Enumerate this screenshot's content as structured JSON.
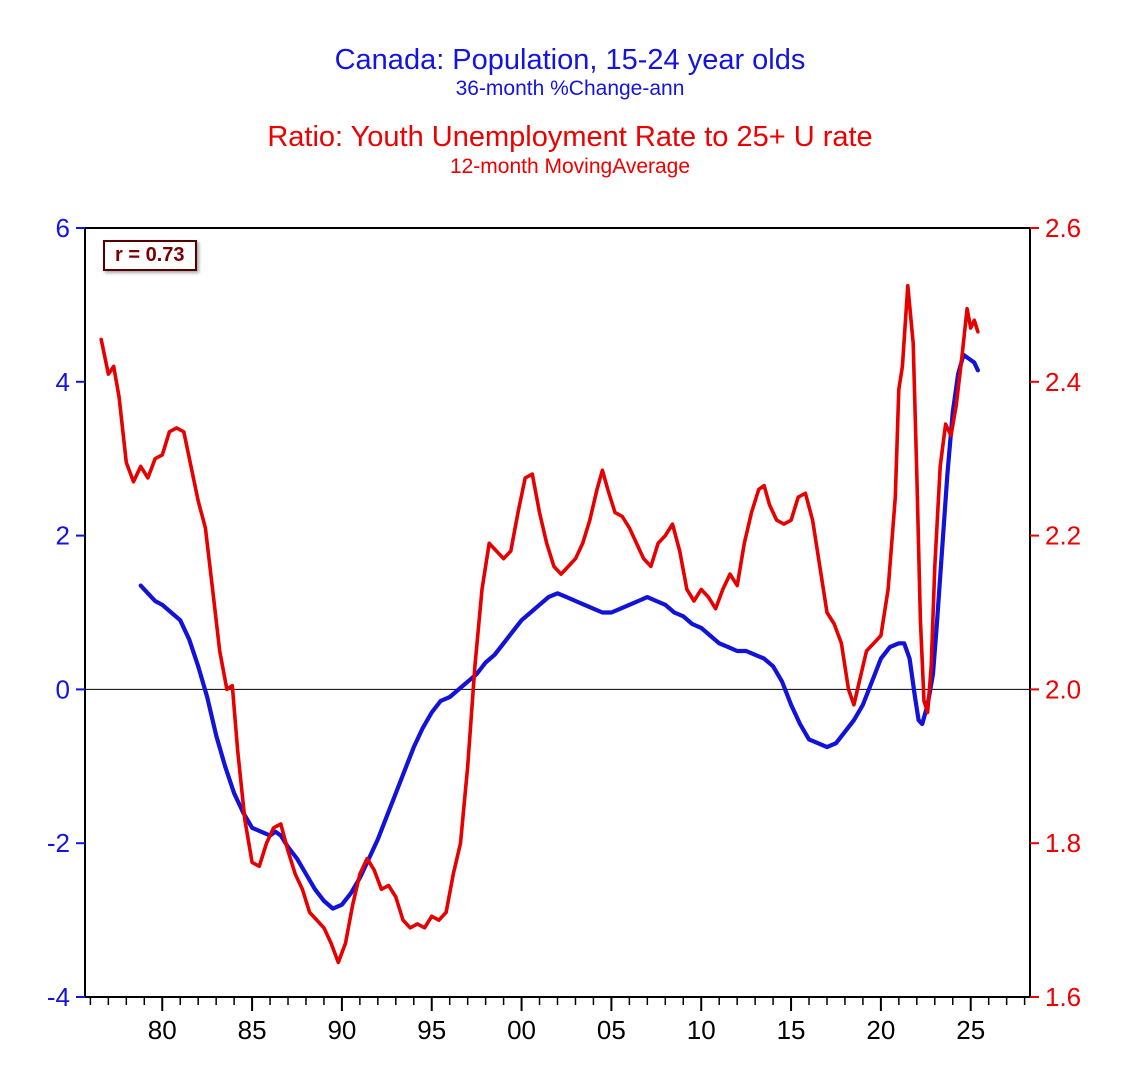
{
  "titles": {
    "line1": "Canada: Population, 15-24 year olds",
    "line2": "36-month %Change-ann",
    "line3": "Ratio: Youth Unemployment Rate to 25+ U rate",
    "line4": "12-month MovingAverage",
    "blue": "#1414E0",
    "red": "#EE0000"
  },
  "annotation": {
    "text": "r = 0.73",
    "color": "#7A0000"
  },
  "chart_data": {
    "type": "line",
    "title": "Canada: Population, 15-24 year olds",
    "subtitle": "36-month %Change-ann",
    "title2": "Ratio: Youth Unemployment Rate to 25+ U rate",
    "subtitle2": "12-month MovingAverage",
    "annotation": "r = 0.73",
    "legend_position": "none",
    "grid": false,
    "zero_line_left_value": 0,
    "x_axis": {
      "min": 1975.7,
      "max": 2028.3,
      "tick_years": [
        1980,
        1985,
        1990,
        1995,
        2000,
        2005,
        2010,
        2015,
        2020,
        2025
      ],
      "tick_labels": [
        "80",
        "85",
        "90",
        "95",
        "00",
        "05",
        "10",
        "15",
        "20",
        "25"
      ],
      "minor_tick_every_years": 1,
      "color": "#000000"
    },
    "left_axis": {
      "min": -4,
      "max": 6,
      "ticks": [
        -4,
        -2,
        0,
        2,
        4,
        6
      ],
      "color": "#1414E0",
      "label": "36-month %Change-ann"
    },
    "right_axis": {
      "min": 1.6,
      "max": 2.6,
      "ticks": [
        1.6,
        1.8,
        2.0,
        2.2,
        2.4,
        2.6
      ],
      "color": "#EE0000",
      "label": "Ratio: Youth U rate to 25+ U rate, 12-month MA"
    },
    "series": [
      {
        "name": "population-15-24-pct-change",
        "axis": "left",
        "color": "#1212D8",
        "width": 4.2,
        "points": [
          [
            1978.8,
            1.35
          ],
          [
            1979.2,
            1.25
          ],
          [
            1979.6,
            1.15
          ],
          [
            1980,
            1.1
          ],
          [
            1980.5,
            1.0
          ],
          [
            1981,
            0.9
          ],
          [
            1981.5,
            0.65
          ],
          [
            1982,
            0.3
          ],
          [
            1982.5,
            -0.1
          ],
          [
            1983,
            -0.6
          ],
          [
            1983.5,
            -1.0
          ],
          [
            1984,
            -1.35
          ],
          [
            1984.5,
            -1.6
          ],
          [
            1985,
            -1.8
          ],
          [
            1985.5,
            -1.85
          ],
          [
            1986,
            -1.9
          ],
          [
            1986.3,
            -1.85
          ],
          [
            1986.6,
            -1.9
          ],
          [
            1987,
            -2.05
          ],
          [
            1987.5,
            -2.2
          ],
          [
            1988,
            -2.4
          ],
          [
            1988.5,
            -2.6
          ],
          [
            1989,
            -2.75
          ],
          [
            1989.5,
            -2.85
          ],
          [
            1990,
            -2.8
          ],
          [
            1990.5,
            -2.65
          ],
          [
            1991,
            -2.45
          ],
          [
            1991.5,
            -2.2
          ],
          [
            1992,
            -1.95
          ],
          [
            1992.5,
            -1.65
          ],
          [
            1993,
            -1.35
          ],
          [
            1993.5,
            -1.05
          ],
          [
            1994,
            -0.75
          ],
          [
            1994.5,
            -0.5
          ],
          [
            1995,
            -0.3
          ],
          [
            1995.5,
            -0.15
          ],
          [
            1996,
            -0.1
          ],
          [
            1996.5,
            0.0
          ],
          [
            1997,
            0.1
          ],
          [
            1997.5,
            0.2
          ],
          [
            1998,
            0.35
          ],
          [
            1998.5,
            0.45
          ],
          [
            1999,
            0.6
          ],
          [
            1999.5,
            0.75
          ],
          [
            2000,
            0.9
          ],
          [
            2000.5,
            1.0
          ],
          [
            2001,
            1.1
          ],
          [
            2001.5,
            1.2
          ],
          [
            2002,
            1.25
          ],
          [
            2002.5,
            1.2
          ],
          [
            2003,
            1.15
          ],
          [
            2003.5,
            1.1
          ],
          [
            2004,
            1.05
          ],
          [
            2004.5,
            1.0
          ],
          [
            2005,
            1.0
          ],
          [
            2005.5,
            1.05
          ],
          [
            2006,
            1.1
          ],
          [
            2006.5,
            1.15
          ],
          [
            2007,
            1.2
          ],
          [
            2007.5,
            1.15
          ],
          [
            2008,
            1.1
          ],
          [
            2008.5,
            1.0
          ],
          [
            2009,
            0.95
          ],
          [
            2009.5,
            0.85
          ],
          [
            2010,
            0.8
          ],
          [
            2010.5,
            0.7
          ],
          [
            2011,
            0.6
          ],
          [
            2011.5,
            0.55
          ],
          [
            2012,
            0.5
          ],
          [
            2012.5,
            0.5
          ],
          [
            2013,
            0.45
          ],
          [
            2013.5,
            0.4
          ],
          [
            2014,
            0.3
          ],
          [
            2014.5,
            0.1
          ],
          [
            2015,
            -0.2
          ],
          [
            2015.5,
            -0.45
          ],
          [
            2016,
            -0.65
          ],
          [
            2016.5,
            -0.7
          ],
          [
            2017,
            -0.75
          ],
          [
            2017.5,
            -0.7
          ],
          [
            2018,
            -0.55
          ],
          [
            2018.5,
            -0.4
          ],
          [
            2019,
            -0.2
          ],
          [
            2019.5,
            0.1
          ],
          [
            2020,
            0.4
          ],
          [
            2020.5,
            0.55
          ],
          [
            2021,
            0.6
          ],
          [
            2021.3,
            0.6
          ],
          [
            2021.6,
            0.4
          ],
          [
            2021.9,
            -0.1
          ],
          [
            2022.1,
            -0.4
          ],
          [
            2022.3,
            -0.45
          ],
          [
            2022.6,
            -0.2
          ],
          [
            2022.9,
            0.2
          ],
          [
            2023.1,
            0.8
          ],
          [
            2023.4,
            1.8
          ],
          [
            2023.7,
            2.8
          ],
          [
            2024,
            3.6
          ],
          [
            2024.3,
            4.1
          ],
          [
            2024.6,
            4.35
          ],
          [
            2024.9,
            4.3
          ],
          [
            2025.2,
            4.25
          ],
          [
            2025.4,
            4.15
          ]
        ]
      },
      {
        "name": "youth-unemployment-ratio",
        "axis": "right",
        "color": "#E60000",
        "width": 3.6,
        "points": [
          [
            1976.6,
            2.455
          ],
          [
            1977,
            2.41
          ],
          [
            1977.3,
            2.42
          ],
          [
            1977.6,
            2.38
          ],
          [
            1978,
            2.295
          ],
          [
            1978.4,
            2.27
          ],
          [
            1978.8,
            2.29
          ],
          [
            1979.2,
            2.275
          ],
          [
            1979.6,
            2.3
          ],
          [
            1980,
            2.305
          ],
          [
            1980.4,
            2.335
          ],
          [
            1980.8,
            2.34
          ],
          [
            1981.2,
            2.335
          ],
          [
            1981.6,
            2.29
          ],
          [
            1982,
            2.245
          ],
          [
            1982.4,
            2.21
          ],
          [
            1982.8,
            2.13
          ],
          [
            1983.2,
            2.05
          ],
          [
            1983.6,
            2.0
          ],
          [
            1983.9,
            2.005
          ],
          [
            1984.2,
            1.92
          ],
          [
            1984.6,
            1.83
          ],
          [
            1985,
            1.775
          ],
          [
            1985.4,
            1.77
          ],
          [
            1985.8,
            1.8
          ],
          [
            1986.2,
            1.82
          ],
          [
            1986.6,
            1.825
          ],
          [
            1987,
            1.79
          ],
          [
            1987.4,
            1.76
          ],
          [
            1987.8,
            1.74
          ],
          [
            1988.2,
            1.71
          ],
          [
            1988.6,
            1.7
          ],
          [
            1989,
            1.69
          ],
          [
            1989.4,
            1.67
          ],
          [
            1989.8,
            1.645
          ],
          [
            1990.2,
            1.67
          ],
          [
            1990.6,
            1.72
          ],
          [
            1991,
            1.76
          ],
          [
            1991.4,
            1.78
          ],
          [
            1991.8,
            1.765
          ],
          [
            1992.2,
            1.74
          ],
          [
            1992.6,
            1.745
          ],
          [
            1993,
            1.73
          ],
          [
            1993.4,
            1.7
          ],
          [
            1993.8,
            1.69
          ],
          [
            1994.2,
            1.695
          ],
          [
            1994.6,
            1.69
          ],
          [
            1995,
            1.705
          ],
          [
            1995.4,
            1.7
          ],
          [
            1995.8,
            1.71
          ],
          [
            1996.2,
            1.76
          ],
          [
            1996.6,
            1.8
          ],
          [
            1997,
            1.9
          ],
          [
            1997.4,
            2.03
          ],
          [
            1997.8,
            2.13
          ],
          [
            1998.2,
            2.19
          ],
          [
            1998.6,
            2.18
          ],
          [
            1999,
            2.17
          ],
          [
            1999.4,
            2.18
          ],
          [
            1999.8,
            2.23
          ],
          [
            2000.2,
            2.275
          ],
          [
            2000.6,
            2.28
          ],
          [
            2001,
            2.23
          ],
          [
            2001.4,
            2.19
          ],
          [
            2001.8,
            2.16
          ],
          [
            2002.2,
            2.15
          ],
          [
            2002.6,
            2.16
          ],
          [
            2003,
            2.17
          ],
          [
            2003.4,
            2.19
          ],
          [
            2003.8,
            2.22
          ],
          [
            2004.2,
            2.26
          ],
          [
            2004.5,
            2.285
          ],
          [
            2004.8,
            2.26
          ],
          [
            2005.2,
            2.23
          ],
          [
            2005.6,
            2.225
          ],
          [
            2006,
            2.21
          ],
          [
            2006.4,
            2.19
          ],
          [
            2006.8,
            2.17
          ],
          [
            2007.2,
            2.16
          ],
          [
            2007.6,
            2.19
          ],
          [
            2008,
            2.2
          ],
          [
            2008.4,
            2.215
          ],
          [
            2008.8,
            2.18
          ],
          [
            2009.2,
            2.13
          ],
          [
            2009.6,
            2.115
          ],
          [
            2010,
            2.13
          ],
          [
            2010.4,
            2.12
          ],
          [
            2010.8,
            2.105
          ],
          [
            2011.2,
            2.13
          ],
          [
            2011.6,
            2.15
          ],
          [
            2012,
            2.135
          ],
          [
            2012.4,
            2.19
          ],
          [
            2012.8,
            2.23
          ],
          [
            2013.2,
            2.26
          ],
          [
            2013.5,
            2.265
          ],
          [
            2013.8,
            2.24
          ],
          [
            2014.2,
            2.22
          ],
          [
            2014.6,
            2.215
          ],
          [
            2015,
            2.22
          ],
          [
            2015.4,
            2.25
          ],
          [
            2015.8,
            2.255
          ],
          [
            2016.2,
            2.22
          ],
          [
            2016.6,
            2.16
          ],
          [
            2017,
            2.1
          ],
          [
            2017.4,
            2.085
          ],
          [
            2017.8,
            2.06
          ],
          [
            2018.2,
            2.0
          ],
          [
            2018.5,
            1.98
          ],
          [
            2018.8,
            2.01
          ],
          [
            2019.2,
            2.05
          ],
          [
            2019.6,
            2.06
          ],
          [
            2020,
            2.07
          ],
          [
            2020.4,
            2.13
          ],
          [
            2020.8,
            2.25
          ],
          [
            2021,
            2.39
          ],
          [
            2021.2,
            2.42
          ],
          [
            2021.5,
            2.525
          ],
          [
            2021.8,
            2.45
          ],
          [
            2022,
            2.28
          ],
          [
            2022.2,
            2.09
          ],
          [
            2022.4,
            1.985
          ],
          [
            2022.6,
            1.97
          ],
          [
            2022.8,
            2.03
          ],
          [
            2023,
            2.16
          ],
          [
            2023.3,
            2.29
          ],
          [
            2023.6,
            2.345
          ],
          [
            2023.9,
            2.33
          ],
          [
            2024.2,
            2.37
          ],
          [
            2024.5,
            2.43
          ],
          [
            2024.8,
            2.495
          ],
          [
            2025,
            2.47
          ],
          [
            2025.2,
            2.48
          ],
          [
            2025.4,
            2.465
          ]
        ]
      }
    ]
  }
}
